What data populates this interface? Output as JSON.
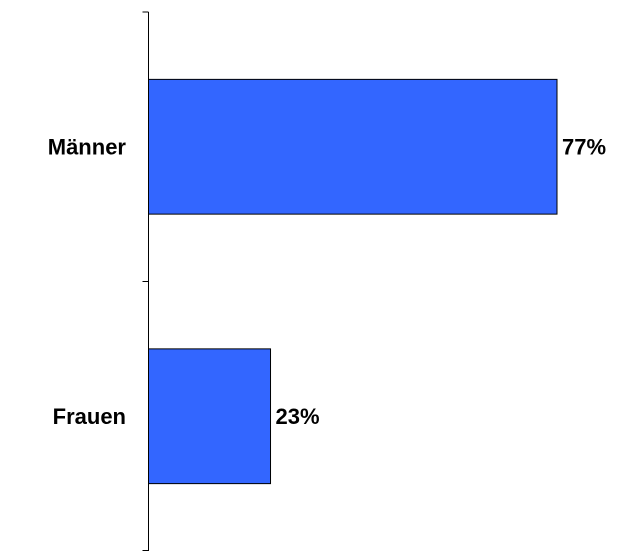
{
  "chart_data": {
    "type": "bar",
    "orientation": "horizontal",
    "categories": [
      "Männer",
      "Frauen"
    ],
    "values": [
      77,
      23
    ],
    "value_labels": [
      "77%",
      "23%"
    ],
    "color": "#3366ff"
  }
}
